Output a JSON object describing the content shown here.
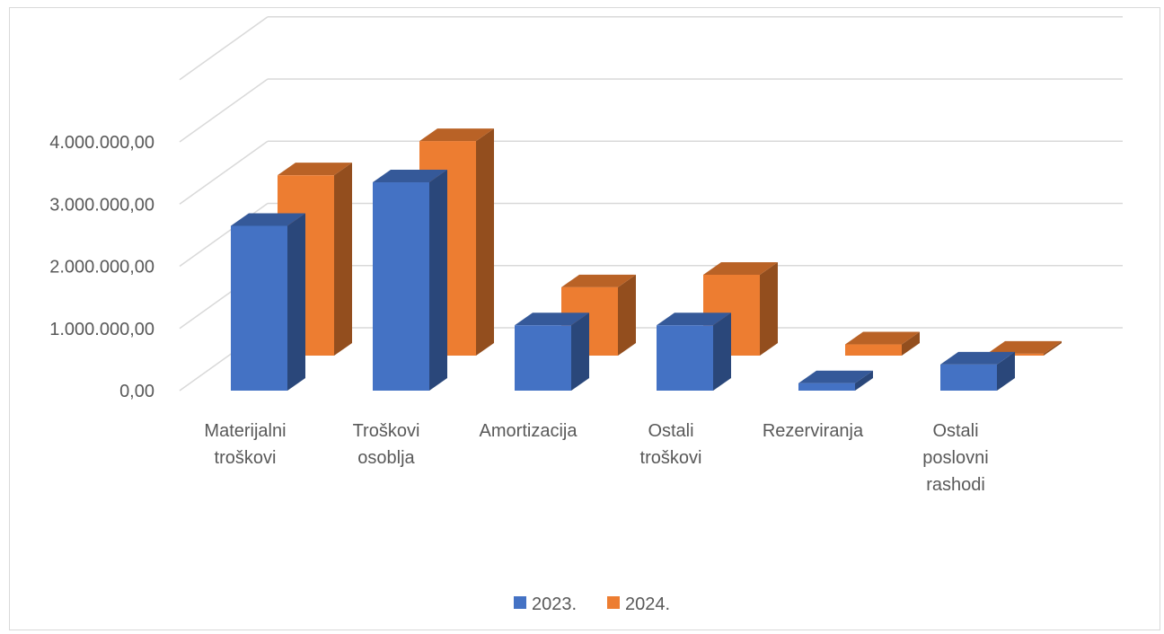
{
  "chart_data": {
    "type": "bar",
    "style": "3d-clustered-column",
    "categories": [
      [
        "Materijalni",
        "troškovi"
      ],
      [
        "Troškovi",
        "osoblja"
      ],
      [
        "Amortizacija"
      ],
      [
        "Ostali",
        "troškovi"
      ],
      [
        "Rezerviranja"
      ],
      [
        "Ostali",
        "poslovni",
        "rashodi"
      ]
    ],
    "series": [
      {
        "name": "2023.",
        "color": "#4472C4",
        "values": [
          2650000,
          3350000,
          1050000,
          1050000,
          120000,
          420000
        ]
      },
      {
        "name": "2024.",
        "color": "#ED7D31",
        "values": [
          2900000,
          3450000,
          1100000,
          1300000,
          180000,
          30000
        ]
      }
    ],
    "ylim": [
      0,
      5000000
    ],
    "yticks": [
      "0,00",
      "1.000.000,00",
      "2.000.000,00",
      "3.000.000,00",
      "4.000.000,00"
    ],
    "ytick_values": [
      0,
      1000000,
      2000000,
      3000000,
      4000000
    ],
    "grid": true,
    "legend": "bottom",
    "title": "",
    "xlabel": "",
    "ylabel": ""
  }
}
